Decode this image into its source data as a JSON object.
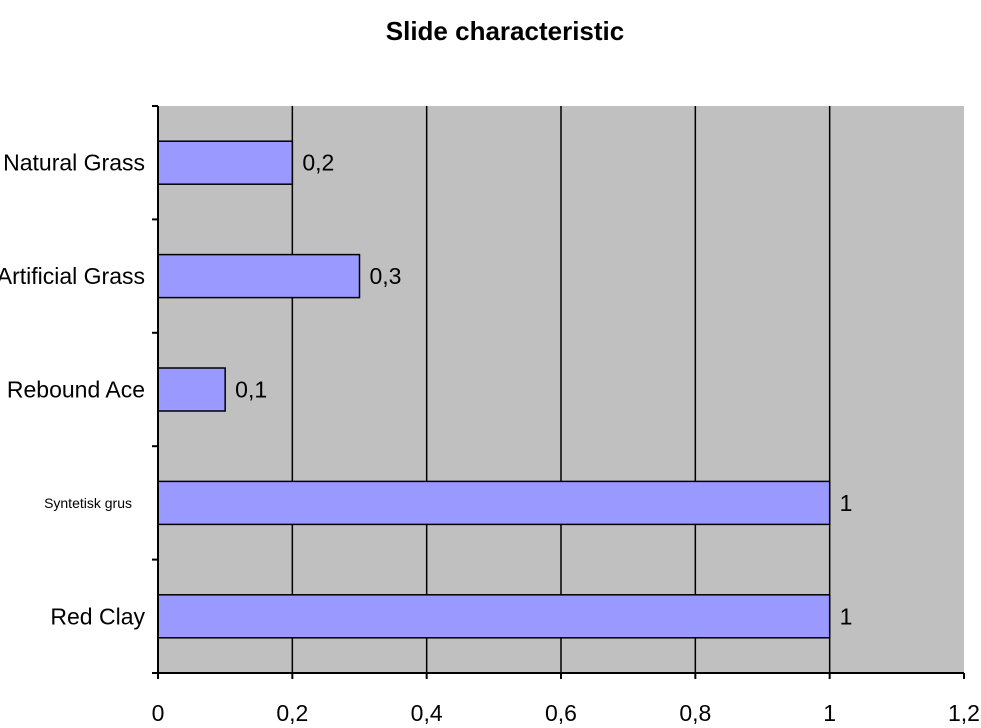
{
  "chart_data": {
    "type": "bar",
    "orientation": "horizontal",
    "title": "Slide characteristic",
    "categories": [
      "Natural Grass",
      "Artificial Grass",
      "Rebound Ace",
      "Syntetisk grus",
      "Red Clay"
    ],
    "values": [
      0.2,
      0.3,
      0.1,
      1,
      1
    ],
    "data_labels": [
      "0,2",
      "0,3",
      "0,1",
      "1",
      "1"
    ],
    "xlim": [
      0,
      1.2
    ],
    "xticks": [
      0,
      0.2,
      0.4,
      0.6,
      0.8,
      1,
      1.2
    ],
    "xtick_labels": [
      "0",
      "0,2",
      "0,4",
      "0,6",
      "0,8",
      "1",
      "1,2"
    ],
    "grid": true,
    "legend": "none",
    "colors": {
      "bar_fill": "#9999ff",
      "bar_stroke": "#000000",
      "plot_background": "#c0c0c0",
      "gridline": "#000000"
    }
  }
}
